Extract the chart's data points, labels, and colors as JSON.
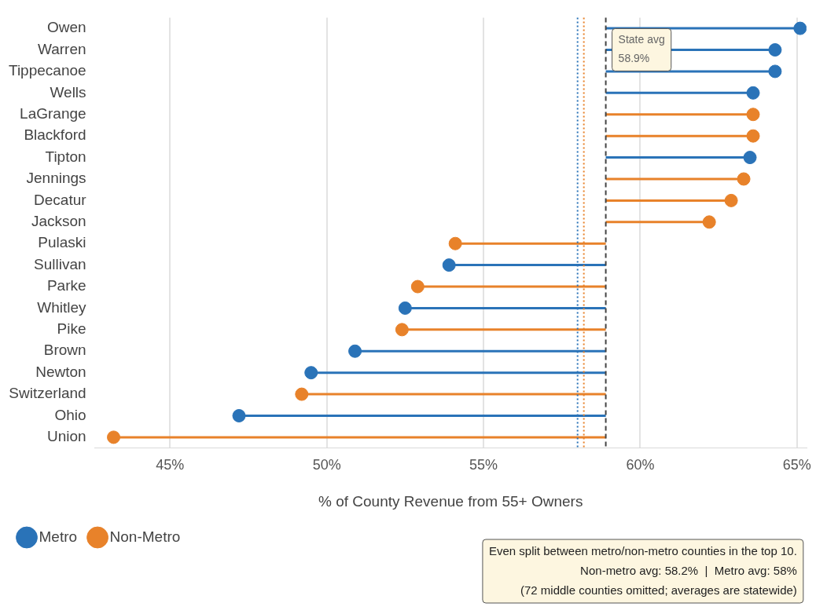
{
  "chart_data": {
    "type": "lollipop",
    "orientation": "horizontal",
    "xlabel": "% of County Revenue from 55+ Owners",
    "categories": [
      "Owen",
      "Warren",
      "Tippecanoe",
      "Wells",
      "LaGrange",
      "Blackford",
      "Tipton",
      "Jennings",
      "Decatur",
      "Jackson",
      "Pulaski",
      "Sullivan",
      "Parke",
      "Whitley",
      "Pike",
      "Brown",
      "Newton",
      "Switzerland",
      "Ohio",
      "Union"
    ],
    "series": [
      {
        "name": "Metro",
        "color": "#2a73b8",
        "values": [
          65.1,
          64.3,
          64.3,
          63.6,
          null,
          null,
          63.5,
          null,
          null,
          null,
          null,
          53.9,
          null,
          52.5,
          null,
          50.9,
          49.5,
          null,
          47.2,
          null
        ],
        "errors": [
          [
            58.9,
            65.1
          ],
          [
            58.9,
            64.3
          ],
          [
            58.9,
            64.3
          ],
          [
            58.9,
            63.6
          ],
          null,
          null,
          [
            58.9,
            63.5
          ],
          null,
          null,
          null,
          null,
          [
            53.9,
            58.9
          ],
          null,
          [
            52.5,
            58.9
          ],
          null,
          [
            50.9,
            58.9
          ],
          [
            49.5,
            58.9
          ],
          null,
          [
            47.2,
            58.9
          ],
          null
        ]
      },
      {
        "name": "Non-Metro",
        "color": "#e8822a",
        "values": [
          null,
          null,
          null,
          null,
          63.6,
          63.6,
          null,
          63.3,
          62.9,
          62.2,
          54.1,
          null,
          52.9,
          null,
          52.4,
          null,
          null,
          49.2,
          null,
          43.2
        ],
        "errors": [
          null,
          null,
          null,
          null,
          [
            58.9,
            63.6
          ],
          [
            58.9,
            63.6
          ],
          null,
          [
            58.9,
            63.3
          ],
          [
            58.9,
            62.9
          ],
          [
            58.9,
            62.2
          ],
          [
            54.1,
            58.9
          ],
          null,
          [
            52.9,
            58.9
          ],
          null,
          [
            52.4,
            58.9
          ],
          null,
          null,
          [
            49.2,
            58.9
          ],
          null,
          [
            43.2,
            58.9
          ]
        ]
      }
    ],
    "xlim": [
      42.6,
      65.3
    ],
    "xticks": [
      {
        "value": 45,
        "label": "45%"
      },
      {
        "value": 50,
        "label": "50%"
      },
      {
        "value": 55,
        "label": "55%"
      },
      {
        "value": 60,
        "label": "60%"
      },
      {
        "value": 65,
        "label": "65%"
      }
    ],
    "ref_lines": [
      {
        "axis": "x",
        "value": 58.9,
        "label": "State avg\n58.9%",
        "color": "#444444",
        "line_style": "dashed"
      },
      {
        "axis": "x",
        "value": 58.2,
        "color": "#e8822a",
        "line_style": "dotted"
      },
      {
        "axis": "x",
        "value": 58,
        "color": "#2a73b8",
        "line_style": "dotted"
      }
    ],
    "annotations": [
      "Even split between metro/non-metro counties in the top 10.\nNon-metro avg: 58.2%  |  Metro avg: 58%\n(72 middle counties omitted; averages are statewide)"
    ],
    "grid": "x",
    "legend": "bottom left",
    "marker": "circle"
  }
}
